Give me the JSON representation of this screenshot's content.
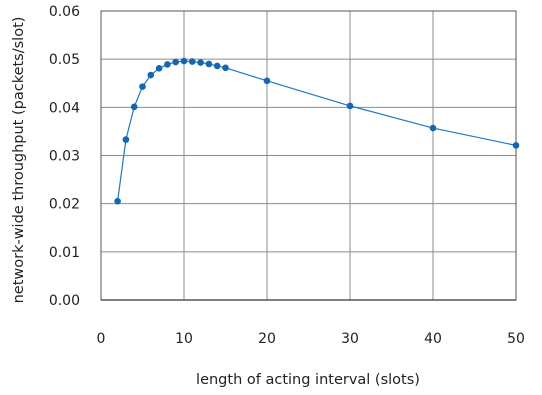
{
  "chart_data": {
    "type": "line",
    "title": "",
    "xlabel": "length of acting interval (slots)",
    "ylabel": "network-wide throughput (packets/slot)",
    "xlim": [
      0,
      50
    ],
    "ylim": [
      0,
      0.06
    ],
    "x_ticks": [
      "0",
      "10",
      "20",
      "30",
      "40",
      "50"
    ],
    "y_ticks": [
      "0.00",
      "0.01",
      "0.02",
      "0.03",
      "0.04",
      "0.05",
      "0.06"
    ],
    "grid": true,
    "legend": "none",
    "series": [
      {
        "color": "#1f77c9",
        "x": [
          2,
          3,
          4,
          5,
          6,
          7,
          8,
          9,
          10,
          11,
          12,
          13,
          14,
          15,
          20,
          30,
          40,
          50
        ],
        "y": [
          0.0205,
          0.0333,
          0.0401,
          0.0443,
          0.0467,
          0.0481,
          0.0489,
          0.0494,
          0.0496,
          0.0495,
          0.0493,
          0.049,
          0.0486,
          0.0482,
          0.0455,
          0.0403,
          0.0357,
          0.0321
        ]
      }
    ]
  }
}
